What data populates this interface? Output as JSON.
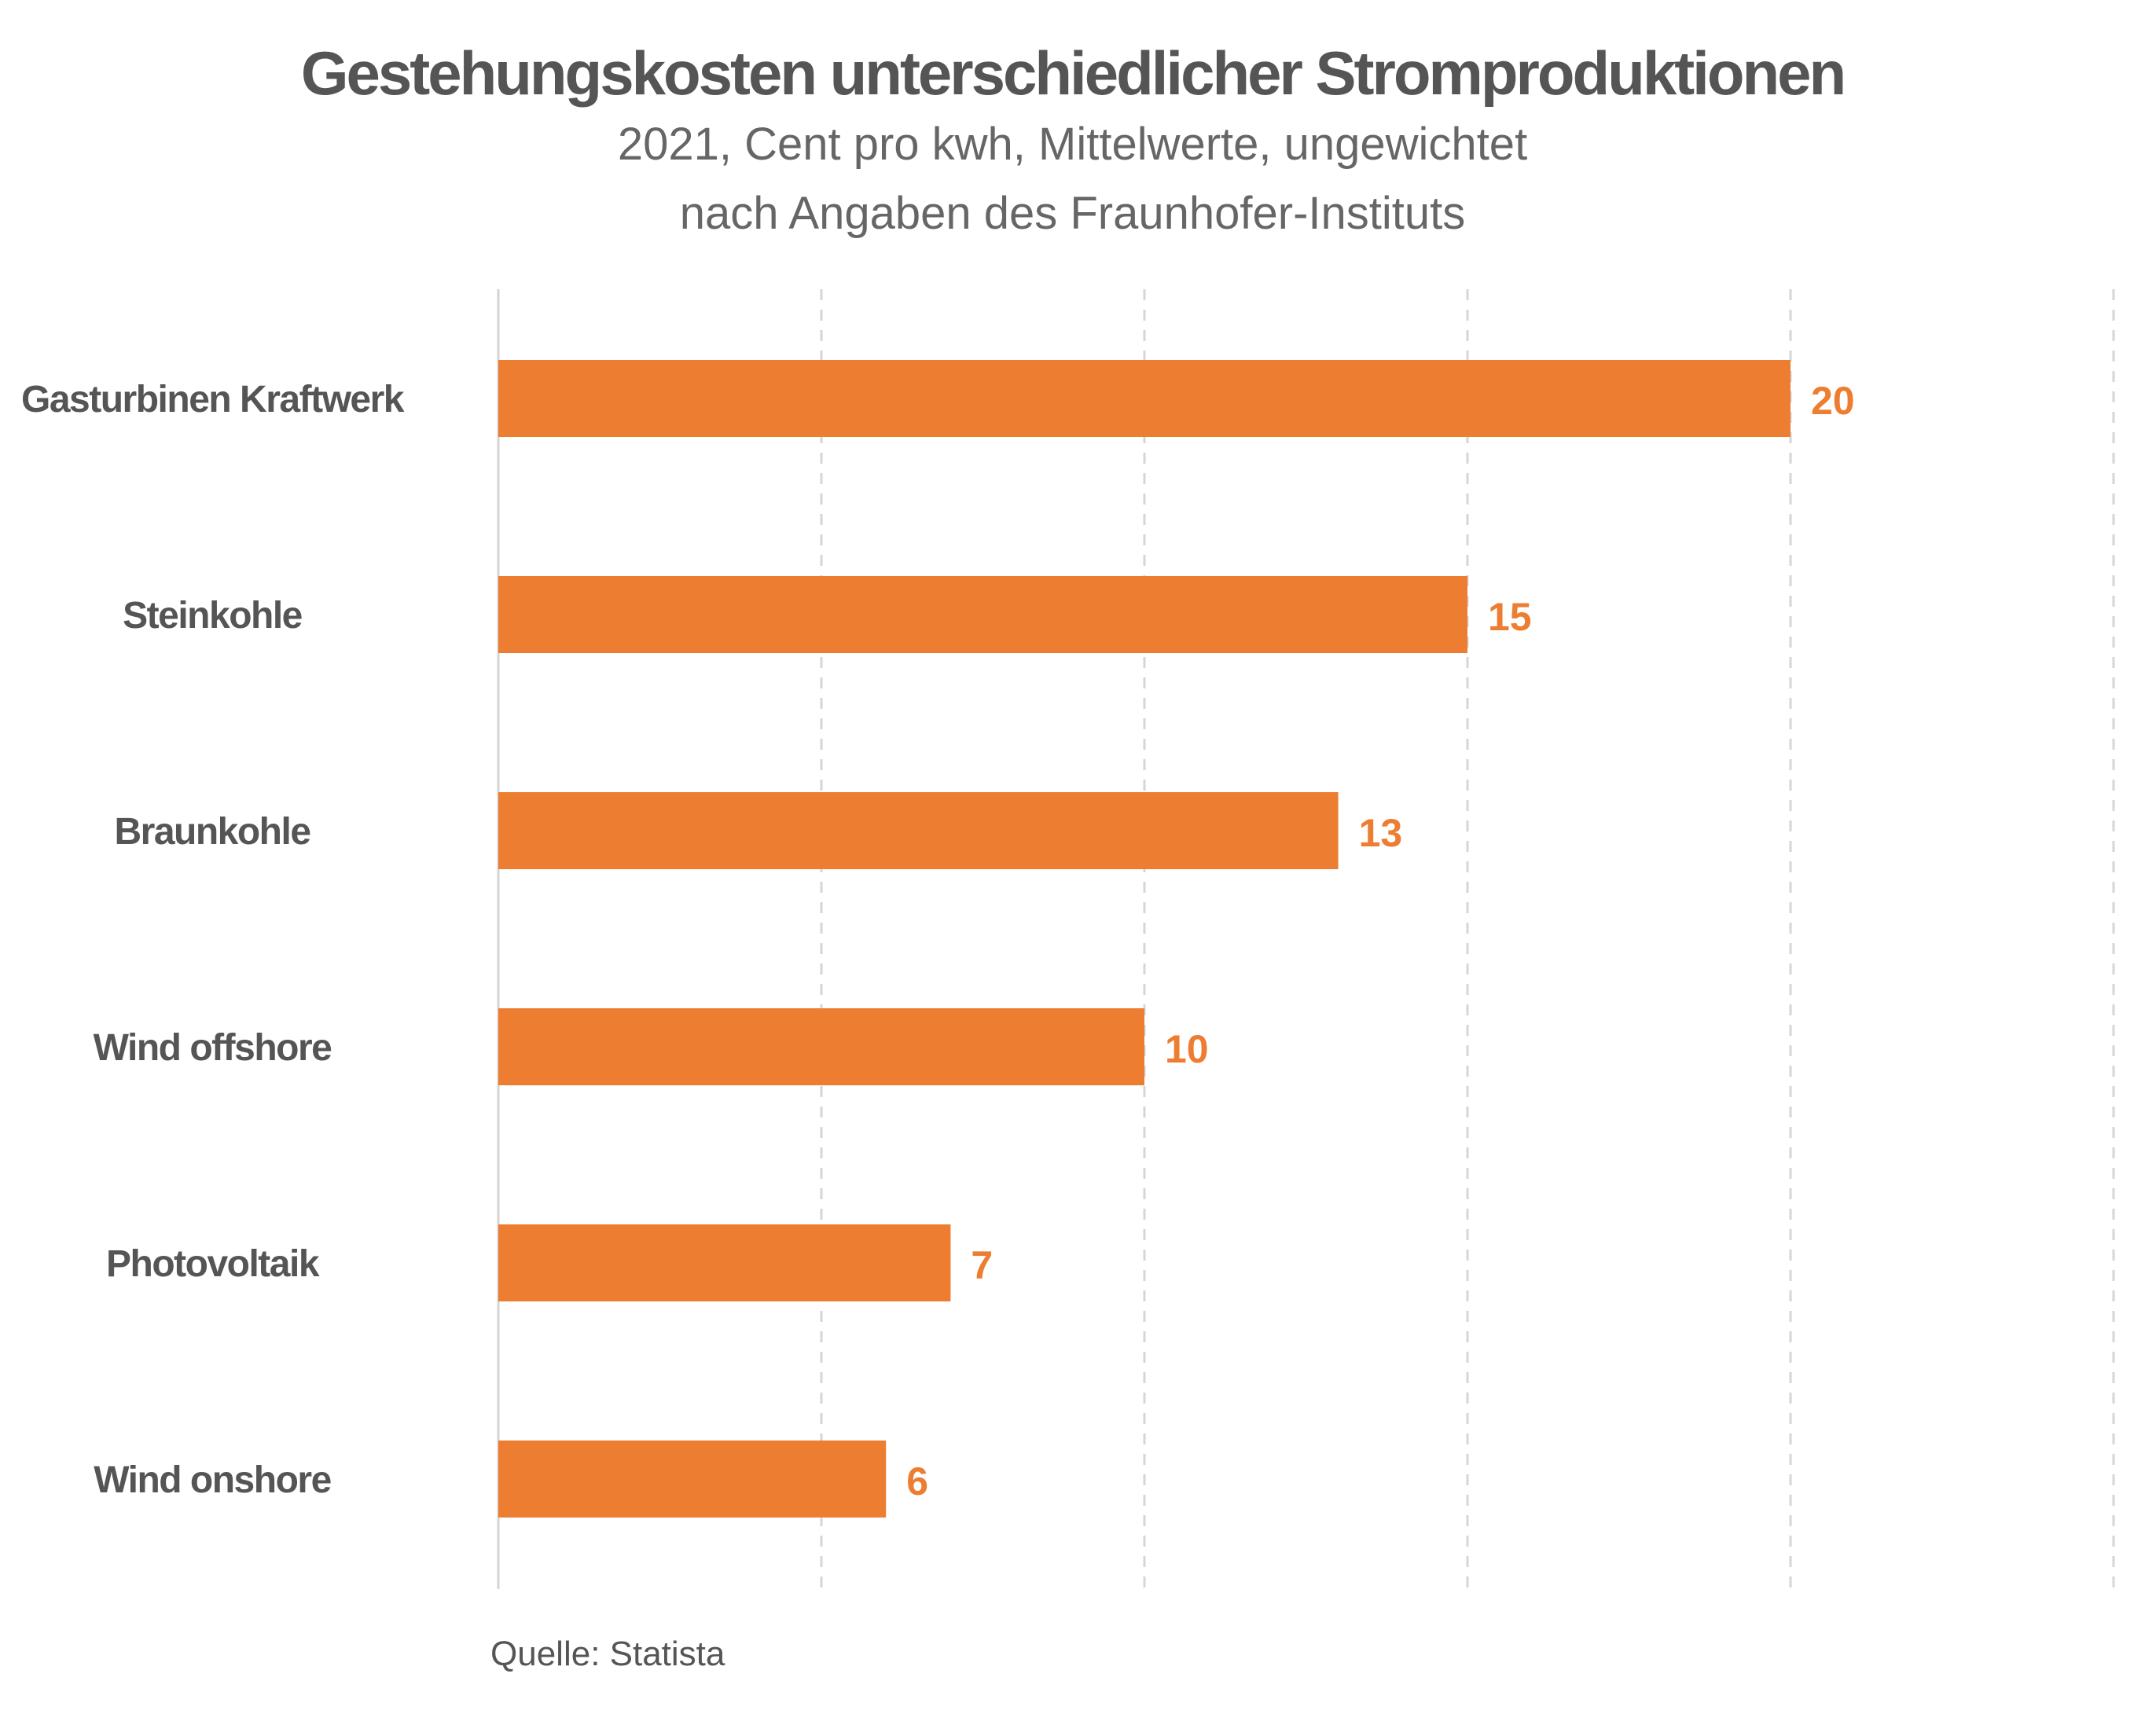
{
  "header": {
    "title": "Gestehungskosten unterschiedlicher Stromproduktionen",
    "subtitle_line1": "2021, Cent pro kwh, Mittelwerte, ungewichtet",
    "subtitle_line2": "nach Angaben des Fraunhofer-Instituts"
  },
  "footer": {
    "source": "Quelle: Statista"
  },
  "chart_data": {
    "type": "bar",
    "orientation": "horizontal",
    "title": "Gestehungskosten unterschiedlicher Stromproduktionen",
    "subtitle": "2021, Cent pro kwh, Mittelwerte, ungewichtet nach Angaben des Fraunhofer-Instituts",
    "categories": [
      "Gasturbinen Kraftwerk",
      "Steinkohle",
      "Braunkohle",
      "Wind offshore",
      "Photovoltaik",
      "Wind onshore"
    ],
    "values": [
      20,
      15,
      13,
      10,
      7,
      6
    ],
    "data_labels": [
      "20",
      "15",
      "13",
      "10",
      "7",
      "6"
    ],
    "xlim": [
      0,
      25
    ],
    "gridlines": [
      5,
      10,
      15,
      20,
      25
    ],
    "grid": true,
    "grid_style": "dashed vertical",
    "legend": "none",
    "bar_color": "#ED7D31",
    "label_color": "#ED7D31",
    "category_label_color": "#555555"
  }
}
